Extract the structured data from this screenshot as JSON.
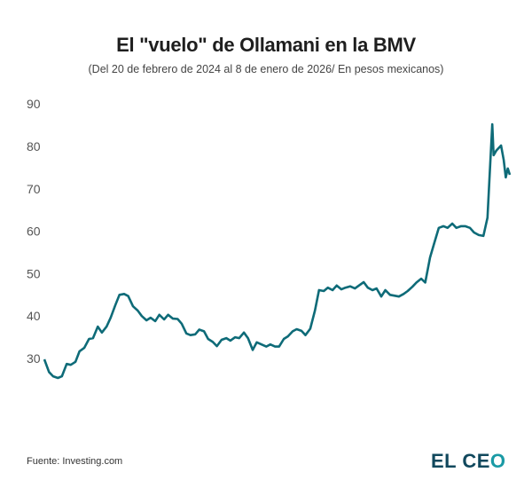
{
  "chart_data": {
    "type": "line",
    "title": "El \"vuelo\" de Ollamani en la BMV",
    "subtitle": "(Del 20 de febrero de 2024 al 8 de enero de 2026/ En pesos mexicanos)",
    "xlim": [
      "2024-02-20",
      "2026-01-08"
    ],
    "ylim": [
      20,
      90
    ],
    "yticks": [
      30,
      40,
      50,
      60,
      70,
      80,
      90
    ],
    "grid": false,
    "line_color": "#0e6b78",
    "series": [
      {
        "x": [
          "2024-02-20",
          "2024-02-27",
          "2024-03-04",
          "2024-03-11",
          "2024-03-17",
          "2024-03-24",
          "2024-03-30",
          "2024-04-06",
          "2024-04-12",
          "2024-04-19",
          "2024-04-26",
          "2024-05-02",
          "2024-05-09",
          "2024-05-15",
          "2024-05-22",
          "2024-05-28",
          "2024-06-04",
          "2024-06-10",
          "2024-06-17",
          "2024-06-23",
          "2024-06-30",
          "2024-07-07",
          "2024-07-13",
          "2024-07-20",
          "2024-07-26",
          "2024-08-02",
          "2024-08-08",
          "2024-08-15",
          "2024-08-21",
          "2024-08-28",
          "2024-09-04",
          "2024-09-10",
          "2024-09-17",
          "2024-09-23",
          "2024-09-30",
          "2024-10-06",
          "2024-10-13",
          "2024-10-19",
          "2024-10-26",
          "2024-11-01",
          "2024-11-08",
          "2024-11-15",
          "2024-11-21",
          "2024-11-28",
          "2024-12-04",
          "2024-12-11",
          "2024-12-17",
          "2024-12-24",
          "2024-12-30",
          "2025-01-06",
          "2025-01-13",
          "2025-01-19",
          "2025-01-26",
          "2025-02-01",
          "2025-02-08",
          "2025-02-14",
          "2025-02-21",
          "2025-02-27",
          "2025-03-06",
          "2025-03-12",
          "2025-03-19",
          "2025-03-26",
          "2025-04-01",
          "2025-04-08",
          "2025-04-14",
          "2025-04-21",
          "2025-04-27",
          "2025-05-04",
          "2025-05-10",
          "2025-05-17",
          "2025-05-24",
          "2025-05-30",
          "2025-06-06",
          "2025-06-12",
          "2025-06-19",
          "2025-06-25",
          "2025-07-02",
          "2025-07-08",
          "2025-07-15",
          "2025-07-22",
          "2025-07-28",
          "2025-08-04",
          "2025-08-10",
          "2025-08-17",
          "2025-08-23",
          "2025-08-30",
          "2025-09-05",
          "2025-09-12",
          "2025-09-18",
          "2025-09-25",
          "2025-10-02",
          "2025-10-08",
          "2025-10-15",
          "2025-10-21",
          "2025-10-28",
          "2025-11-03",
          "2025-11-10",
          "2025-11-16",
          "2025-11-23",
          "2025-11-30",
          "2025-12-06",
          "2025-12-09",
          "2025-12-13",
          "2025-12-15",
          "2025-12-19",
          "2025-12-26",
          "2025-12-30",
          "2026-01-02",
          "2026-01-05",
          "2026-01-08"
        ],
        "y": [
          29.8,
          26.8,
          25.8,
          25.4,
          25.8,
          28.7,
          28.5,
          29.2,
          31.7,
          32.5,
          34.6,
          34.8,
          37.5,
          36.1,
          37.5,
          39.6,
          42.6,
          45.0,
          45.2,
          44.7,
          42.3,
          41.3,
          40.0,
          39.0,
          39.6,
          38.8,
          40.3,
          39.2,
          40.3,
          39.4,
          39.3,
          38.2,
          35.9,
          35.5,
          35.7,
          36.8,
          36.4,
          34.6,
          33.9,
          32.9,
          34.4,
          34.8,
          34.2,
          35.0,
          34.8,
          36.1,
          34.8,
          32.0,
          33.8,
          33.3,
          32.8,
          33.3,
          32.8,
          32.8,
          34.6,
          35.2,
          36.4,
          36.9,
          36.5,
          35.5,
          37.0,
          41.3,
          46.1,
          45.9,
          46.7,
          46.1,
          47.2,
          46.3,
          46.7,
          47.0,
          46.5,
          47.2,
          48.0,
          46.7,
          46.1,
          46.5,
          44.6,
          46.1,
          45.0,
          44.8,
          44.6,
          45.2,
          45.9,
          46.9,
          47.9,
          48.8,
          47.9,
          53.8,
          57.0,
          60.8,
          61.2,
          60.8,
          61.8,
          60.8,
          61.2,
          61.2,
          60.8,
          59.7,
          59.1,
          58.9,
          63.2,
          72.7,
          85.2,
          77.9,
          79.0,
          80.2,
          76.8,
          72.7,
          74.8,
          73.3
        ]
      }
    ]
  },
  "footer": {
    "source": "Fuente: Investing.com",
    "logo_text": "EL CEO"
  }
}
